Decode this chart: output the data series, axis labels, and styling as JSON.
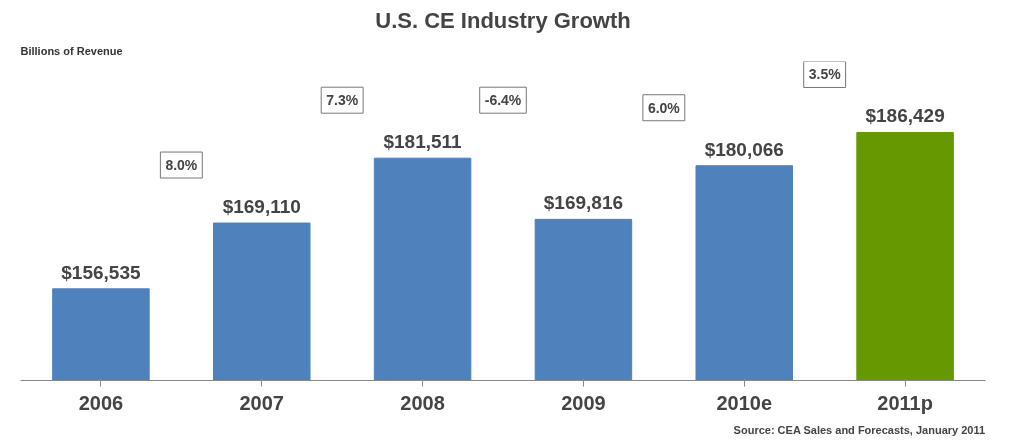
{
  "chart_data": {
    "type": "bar",
    "title": "U.S. CE Industry Growth",
    "ylabel": "Billions of Revenue",
    "categories": [
      "2006",
      "2007",
      "2008",
      "2009",
      "2010e",
      "2011p"
    ],
    "values": [
      156535,
      169110,
      181511,
      169816,
      180066,
      186429
    ],
    "value_labels": [
      "$156,535",
      "$169,110",
      "$181,511",
      "$169,816",
      "$180,066",
      "$186,429"
    ],
    "colors": [
      "#4f81bd",
      "#4f81bd",
      "#4f81bd",
      "#4f81bd",
      "#4f81bd",
      "#669900"
    ],
    "ylim": [
      139000,
      200000
    ],
    "tick_labels": "x",
    "grid": false,
    "annotations": [
      "8.0%",
      "7.3%",
      "-6.4%",
      "6.0%",
      "3.5%",
      "Source: CEA Sales and Forecasts, January 2011"
    ]
  }
}
